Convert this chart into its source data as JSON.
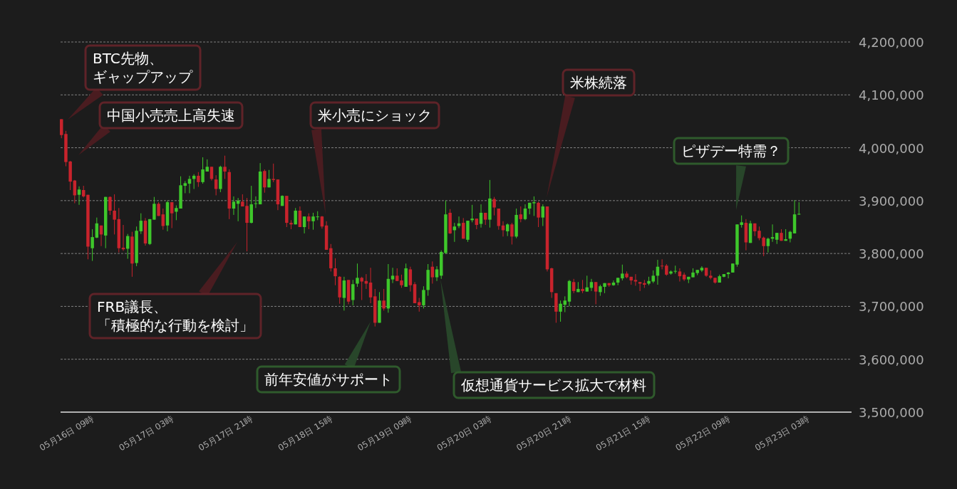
{
  "chart_data": {
    "type": "candlestick",
    "categories": [
      null,
      null,
      null,
      null,
      null,
      null,
      null,
      "05月16日 09時",
      null,
      null,
      null,
      null,
      null,
      null,
      null,
      null,
      null,
      null,
      null,
      null,
      null,
      null,
      null,
      null,
      null,
      "05月17日 03時",
      null,
      null,
      null,
      null,
      null,
      null,
      null,
      null,
      null,
      null,
      null,
      null,
      null,
      null,
      null,
      null,
      null,
      "05月17日 21時",
      null,
      null,
      null,
      null,
      null,
      null,
      null,
      null,
      null,
      null,
      null,
      null,
      null,
      null,
      null,
      null,
      null,
      "05月18日 15時",
      null,
      null,
      null,
      null,
      null,
      null,
      null,
      null,
      null,
      null,
      null,
      null,
      null,
      null,
      null,
      null,
      null,
      "05月19日 09時",
      null,
      null,
      null,
      null,
      null,
      null,
      null,
      null,
      null,
      null,
      null,
      null,
      null,
      null,
      null,
      null,
      null,
      "05月20日 03時",
      null,
      null,
      null,
      null,
      null,
      null,
      null,
      null,
      null,
      null,
      null,
      null,
      null,
      null,
      null,
      null,
      null,
      "05月20日 21時",
      null,
      null,
      null,
      null,
      null,
      null,
      null,
      null,
      null,
      null,
      null,
      null,
      null,
      null,
      null,
      null,
      null,
      "05月21日 15時",
      null,
      null,
      null,
      null,
      null,
      null,
      null,
      null,
      null,
      null,
      null,
      null,
      null,
      null,
      null,
      null,
      null,
      "05月22日 09時",
      null,
      null,
      null,
      null,
      null,
      null,
      null,
      null,
      null,
      null,
      null,
      null,
      null,
      null,
      null,
      null,
      null,
      "05月23日 03時"
    ],
    "ohlc": [
      [
        4054000,
        4054000,
        4018000,
        4024000
      ],
      [
        4026000,
        4032000,
        3965000,
        3973000
      ],
      [
        3974000,
        3975000,
        3920000,
        3936000
      ],
      [
        3938000,
        3939000,
        3895000,
        3910000
      ],
      [
        3911000,
        3927000,
        3892000,
        3921000
      ],
      [
        3920000,
        3928000,
        3906000,
        3908000
      ],
      [
        3911000,
        3911000,
        3789000,
        3813000
      ],
      [
        3810000,
        3846000,
        3786000,
        3831000
      ],
      [
        3830000,
        3868000,
        3829000,
        3857000
      ],
      [
        3853000,
        3853000,
        3814000,
        3836000
      ],
      [
        3834000,
        3907000,
        3810000,
        3907000
      ],
      [
        3907000,
        3908000,
        3873000,
        3881000
      ],
      [
        3881000,
        3912000,
        3836000,
        3864000
      ],
      [
        3865000,
        3886000,
        3802000,
        3810000
      ],
      [
        3811000,
        3854000,
        3805000,
        3808000
      ],
      [
        3809000,
        3837000,
        3790000,
        3833000
      ],
      [
        3832000,
        3841000,
        3756000,
        3781000
      ],
      [
        3782000,
        3851000,
        3776000,
        3843000
      ],
      [
        3842000,
        3876000,
        3837000,
        3862000
      ],
      [
        3862000,
        3867000,
        3815000,
        3819000
      ],
      [
        3818000,
        3865000,
        3816000,
        3865000
      ],
      [
        3864000,
        3907000,
        3864000,
        3894000
      ],
      [
        3894000,
        3897000,
        3871000,
        3871000
      ],
      [
        3874000,
        3885000,
        3845000,
        3852000
      ],
      [
        3853000,
        3900000,
        3842000,
        3897000
      ],
      [
        3897000,
        3897000,
        3848000,
        3876000
      ],
      [
        3879000,
        3891000,
        3863000,
        3886000
      ],
      [
        3885000,
        3946000,
        3885000,
        3929000
      ],
      [
        3928000,
        3937000,
        3914000,
        3933000
      ],
      [
        3932000,
        3947000,
        3914000,
        3941000
      ],
      [
        3941000,
        3950000,
        3922000,
        3947000
      ],
      [
        3947000,
        3954000,
        3926000,
        3935000
      ],
      [
        3935000,
        3982000,
        3932000,
        3959000
      ],
      [
        3955000,
        3978000,
        3955000,
        3964000
      ],
      [
        3964000,
        3964000,
        3938000,
        3941000
      ],
      [
        3940000,
        3948000,
        3910000,
        3922000
      ],
      [
        3922000,
        3966000,
        3916000,
        3964000
      ],
      [
        3964000,
        3985000,
        3941000,
        3955000
      ],
      [
        3954000,
        3959000,
        3865000,
        3885000
      ],
      [
        3885000,
        3908000,
        3873000,
        3898000
      ],
      [
        3894000,
        3905000,
        3861000,
        3900000
      ],
      [
        3898000,
        3912000,
        3889000,
        3889000
      ],
      [
        3890000,
        3905000,
        3804000,
        3858000
      ],
      [
        3858000,
        3928000,
        3857000,
        3893000
      ],
      [
        3894000,
        3908000,
        3886000,
        3895000
      ],
      [
        3893000,
        3971000,
        3893000,
        3955000
      ],
      [
        3956000,
        3959000,
        3915000,
        3925000
      ],
      [
        3925000,
        3958000,
        3925000,
        3941000
      ],
      [
        3941000,
        3970000,
        3935000,
        3939000
      ],
      [
        3940000,
        3940000,
        3882000,
        3893000
      ],
      [
        3890000,
        3910000,
        3890000,
        3909000
      ],
      [
        3909000,
        3909000,
        3850000,
        3858000
      ],
      [
        3858000,
        3863000,
        3846000,
        3855000
      ],
      [
        3855000,
        3886000,
        3855000,
        3881000
      ],
      [
        3881000,
        3889000,
        3850000,
        3850000
      ],
      [
        3850000,
        3870000,
        3838000,
        3870000
      ],
      [
        3870000,
        3876000,
        3846000,
        3861000
      ],
      [
        3861000,
        3877000,
        3845000,
        3870000
      ],
      [
        3869000,
        3880000,
        3863000,
        3870000
      ],
      [
        3870000,
        3871000,
        3847000,
        3851000
      ],
      [
        3853000,
        3861000,
        3807000,
        3807000
      ],
      [
        3810000,
        3818000,
        3766000,
        3772000
      ],
      [
        3772000,
        3791000,
        3740000,
        3757000
      ],
      [
        3756000,
        3757000,
        3705000,
        3717000
      ],
      [
        3716000,
        3756000,
        3692000,
        3749000
      ],
      [
        3750000,
        3750000,
        3704000,
        3709000
      ],
      [
        3712000,
        3750000,
        3702000,
        3742000
      ],
      [
        3743000,
        3781000,
        3737000,
        3754000
      ],
      [
        3754000,
        3756000,
        3712000,
        3747000
      ],
      [
        3748000,
        3761000,
        3733000,
        3743000
      ],
      [
        3745000,
        3773000,
        3706000,
        3717000
      ],
      [
        3719000,
        3733000,
        3662000,
        3669000
      ],
      [
        3669000,
        3727000,
        3669000,
        3711000
      ],
      [
        3711000,
        3733000,
        3692000,
        3696000
      ],
      [
        3696000,
        3780000,
        3688000,
        3752000
      ],
      [
        3751000,
        3773000,
        3744000,
        3758000
      ],
      [
        3758000,
        3772000,
        3748000,
        3748000
      ],
      [
        3749000,
        3760000,
        3735000,
        3740000
      ],
      [
        3737000,
        3781000,
        3737000,
        3772000
      ],
      [
        3770000,
        3775000,
        3728000,
        3740000
      ],
      [
        3742000,
        3746000,
        3706000,
        3706000
      ],
      [
        3708000,
        3716000,
        3690000,
        3702000
      ],
      [
        3702000,
        3738000,
        3696000,
        3731000
      ],
      [
        3731000,
        3780000,
        3720000,
        3769000
      ],
      [
        3775000,
        3785000,
        3743000,
        3755000
      ],
      [
        3755000,
        3776000,
        3748000,
        3770000
      ],
      [
        3758000,
        3806000,
        3752000,
        3803000
      ],
      [
        3801000,
        3900000,
        3799000,
        3874000
      ],
      [
        3877000,
        3884000,
        3837000,
        3838000
      ],
      [
        3844000,
        3858000,
        3822000,
        3851000
      ],
      [
        3852000,
        3870000,
        3848000,
        3857000
      ],
      [
        3858000,
        3867000,
        3828000,
        3828000
      ],
      [
        3826000,
        3862000,
        3822000,
        3862000
      ],
      [
        3863000,
        3892000,
        3859000,
        3866000
      ],
      [
        3866000,
        3866000,
        3846000,
        3854000
      ],
      [
        3856000,
        3893000,
        3849000,
        3877000
      ],
      [
        3877000,
        3877000,
        3854000,
        3864000
      ],
      [
        3864000,
        3939000,
        3849000,
        3904000
      ],
      [
        3903000,
        3907000,
        3872000,
        3887000
      ],
      [
        3885000,
        3885000,
        3845000,
        3852000
      ],
      [
        3853000,
        3861000,
        3832000,
        3844000
      ],
      [
        3842000,
        3857000,
        3833000,
        3855000
      ],
      [
        3855000,
        3858000,
        3817000,
        3832000
      ],
      [
        3832000,
        3885000,
        3829000,
        3873000
      ],
      [
        3874000,
        3889000,
        3859000,
        3865000
      ],
      [
        3865000,
        3893000,
        3863000,
        3885000
      ],
      [
        3885000,
        3896000,
        3874000,
        3896000
      ],
      [
        3895000,
        3908000,
        3871000,
        3897000
      ],
      [
        3896000,
        3898000,
        3850000,
        3868000
      ],
      [
        3868000,
        3893000,
        3852000,
        3889000
      ],
      [
        3889000,
        3889000,
        3766000,
        3770000
      ],
      [
        3772000,
        3773000,
        3716000,
        3727000
      ],
      [
        3725000,
        3725000,
        3669000,
        3690000
      ],
      [
        3690000,
        3711000,
        3671000,
        3705000
      ],
      [
        3703000,
        3719000,
        3689000,
        3711000
      ],
      [
        3709000,
        3750000,
        3700000,
        3748000
      ],
      [
        3746000,
        3752000,
        3725000,
        3729000
      ],
      [
        3727000,
        3746000,
        3727000,
        3733000
      ],
      [
        3733000,
        3750000,
        3725000,
        3729000
      ],
      [
        3728000,
        3758000,
        3728000,
        3736000
      ],
      [
        3735000,
        3752000,
        3729000,
        3746000
      ],
      [
        3746000,
        3746000,
        3704000,
        3728000
      ],
      [
        3727000,
        3741000,
        3720000,
        3738000
      ],
      [
        3737000,
        3744000,
        3725000,
        3744000
      ],
      [
        3744000,
        3744000,
        3737000,
        3740000
      ],
      [
        3740000,
        3749000,
        3739000,
        3745000
      ],
      [
        3745000,
        3754000,
        3740000,
        3754000
      ],
      [
        3753000,
        3779000,
        3749000,
        3762000
      ],
      [
        3762000,
        3766000,
        3753000,
        3755000
      ],
      [
        3756000,
        3756000,
        3741000,
        3749000
      ],
      [
        3750000,
        3761000,
        3739000,
        3747000
      ],
      [
        3746000,
        3746000,
        3729000,
        3743000
      ],
      [
        3744000,
        3750000,
        3735000,
        3741000
      ],
      [
        3743000,
        3756000,
        3740000,
        3748000
      ],
      [
        3747000,
        3768000,
        3744000,
        3758000
      ],
      [
        3758000,
        3788000,
        3741000,
        3775000
      ],
      [
        3777000,
        3789000,
        3770000,
        3776000
      ],
      [
        3777000,
        3780000,
        3758000,
        3760000
      ],
      [
        3762000,
        3768000,
        3760000,
        3766000
      ],
      [
        3766000,
        3777000,
        3762000,
        3767000
      ],
      [
        3766000,
        3772000,
        3747000,
        3757000
      ],
      [
        3760000,
        3764000,
        3748000,
        3751000
      ],
      [
        3751000,
        3756000,
        3744000,
        3756000
      ],
      [
        3755000,
        3772000,
        3755000,
        3764000
      ],
      [
        3763000,
        3769000,
        3759000,
        3769000
      ],
      [
        3768000,
        3776000,
        3765000,
        3773000
      ],
      [
        3773000,
        3773000,
        3756000,
        3758000
      ],
      [
        3758000,
        3768000,
        3751000,
        3754000
      ],
      [
        3754000,
        3754000,
        3743000,
        3745000
      ],
      [
        3745000,
        3760000,
        3745000,
        3757000
      ],
      [
        3756000,
        3761000,
        3755000,
        3761000
      ],
      [
        3761000,
        3765000,
        3753000,
        3764000
      ],
      [
        3764000,
        3781000,
        3764000,
        3781000
      ],
      [
        3779000,
        3855000,
        3775000,
        3855000
      ],
      [
        3854000,
        3872000,
        3849000,
        3859000
      ],
      [
        3858000,
        3865000,
        3806000,
        3821000
      ],
      [
        3820000,
        3862000,
        3820000,
        3857000
      ],
      [
        3857000,
        3857000,
        3833000,
        3842000
      ],
      [
        3843000,
        3851000,
        3825000,
        3829000
      ],
      [
        3830000,
        3832000,
        3795000,
        3814000
      ],
      [
        3814000,
        3830000,
        3802000,
        3828000
      ],
      [
        3828000,
        3855000,
        3822000,
        3831000
      ],
      [
        3826000,
        3839000,
        3818000,
        3839000
      ],
      [
        3839000,
        3846000,
        3824000,
        3824000
      ],
      [
        3824000,
        3846000,
        3824000,
        3827000
      ],
      [
        3828000,
        3843000,
        3821000,
        3841000
      ],
      [
        3838000,
        3901000,
        3838000,
        3874000
      ],
      [
        3874000,
        3897000,
        3873000,
        3875000
      ],
      null,
      null
    ],
    "colors": [
      "#c8232c",
      "#c8232c",
      "#c8232c",
      "#c8232c",
      "#3ec72b",
      "#c8232c",
      "#c8232c",
      "#3ec72b",
      "#3ec72b",
      "#c8232c",
      "#3ec72b",
      "#c8232c",
      "#c8232c",
      "#c8232c",
      "#c8232c",
      "#3ec72b",
      "#c8232c",
      "#3ec72b",
      "#3ec72b",
      "#c8232c",
      "#3ec72b",
      "#3ec72b",
      "#c8232c",
      "#c8232c",
      "#3ec72b",
      "#c8232c",
      "#3ec72b",
      "#3ec72b",
      "#3ec72b",
      "#3ec72b",
      "#3ec72b",
      "#c8232c",
      "#3ec72b",
      "#3ec72b",
      "#c8232c",
      "#c8232c",
      "#3ec72b",
      "#c8232c",
      "#c8232c",
      "#3ec72b",
      "#3ec72b",
      "#c8232c",
      "#c8232c",
      "#3ec72b",
      "#3ec72b",
      "#3ec72b",
      "#c8232c",
      "#3ec72b",
      "#c8232c",
      "#c8232c",
      "#3ec72b",
      "#c8232c",
      "#c8232c",
      "#3ec72b",
      "#c8232c",
      "#3ec72b",
      "#c8232c",
      "#3ec72b",
      "#3ec72b",
      "#c8232c",
      "#c8232c",
      "#c8232c",
      "#c8232c",
      "#c8232c",
      "#3ec72b",
      "#c8232c",
      "#3ec72b",
      "#3ec72b",
      "#c8232c",
      "#c8232c",
      "#c8232c",
      "#c8232c",
      "#3ec72b",
      "#c8232c",
      "#3ec72b",
      "#3ec72b",
      "#c8232c",
      "#c8232c",
      "#3ec72b",
      "#c8232c",
      "#c8232c",
      "#c8232c",
      "#3ec72b",
      "#3ec72b",
      "#c8232c",
      "#3ec72b",
      "#3ec72b",
      "#3ec72b",
      "#c8232c",
      "#3ec72b",
      "#3ec72b",
      "#c8232c",
      "#3ec72b",
      "#3ec72b",
      "#c8232c",
      "#3ec72b",
      "#c8232c",
      "#3ec72b",
      "#c8232c",
      "#c8232c",
      "#c8232c",
      "#3ec72b",
      "#c8232c",
      "#3ec72b",
      "#c8232c",
      "#3ec72b",
      "#3ec72b",
      "#3ec72b",
      "#c8232c",
      "#3ec72b",
      "#c8232c",
      "#c8232c",
      "#c8232c",
      "#3ec72b",
      "#3ec72b",
      "#3ec72b",
      "#c8232c",
      "#3ec72b",
      "#c8232c",
      "#3ec72b",
      "#3ec72b",
      "#c8232c",
      "#3ec72b",
      "#3ec72b",
      "#c8232c",
      "#3ec72b",
      "#3ec72b",
      "#3ec72b",
      "#c8232c",
      "#c8232c",
      "#c8232c",
      "#c8232c",
      "#c8232c",
      "#3ec72b",
      "#3ec72b",
      "#3ec72b",
      "#c8232c",
      "#c8232c",
      "#3ec72b",
      "#3ec72b",
      "#c8232c",
      "#c8232c",
      "#3ec72b",
      "#3ec72b",
      "#3ec72b",
      "#3ec72b",
      "#c8232c",
      "#c8232c",
      "#c8232c",
      "#3ec72b",
      "#3ec72b",
      "#3ec72b",
      "#3ec72b",
      "#3ec72b",
      "#3ec72b",
      "#c8232c",
      "#3ec72b",
      "#c8232c",
      "#c8232c",
      "#c8232c",
      "#3ec72b",
      "#3ec72b",
      "#3ec72b",
      "#c8232c",
      "#3ec72b",
      "#3ec72b",
      "#3ec72b",
      "#3ec72b",
      null,
      null
    ],
    "ylim": [
      3500000,
      4200000
    ],
    "yticks": [
      {
        "value": 3500000,
        "label": "3,500,000"
      },
      {
        "value": 3600000,
        "label": "3,600,000"
      },
      {
        "value": 3700000,
        "label": "3,700,000"
      },
      {
        "value": 3800000,
        "label": "3,800,000"
      },
      {
        "value": 3900000,
        "label": "3,900,000"
      },
      {
        "value": 4000000,
        "label": "4,000,000"
      },
      {
        "value": 4100000,
        "label": "4,100,000"
      },
      {
        "value": 4200000,
        "label": "4,200,000"
      }
    ],
    "grid": "y",
    "annotations": [
      "BTC先物、ギャップアップ",
      "中国小売売上高失速",
      "米小売にショック",
      "米株続落",
      "ピザデー特需？",
      "FRB議長、「積極的な行動を検討」",
      "前年安値がサポート",
      "仮想通貨サービス拡大で材料"
    ]
  }
}
